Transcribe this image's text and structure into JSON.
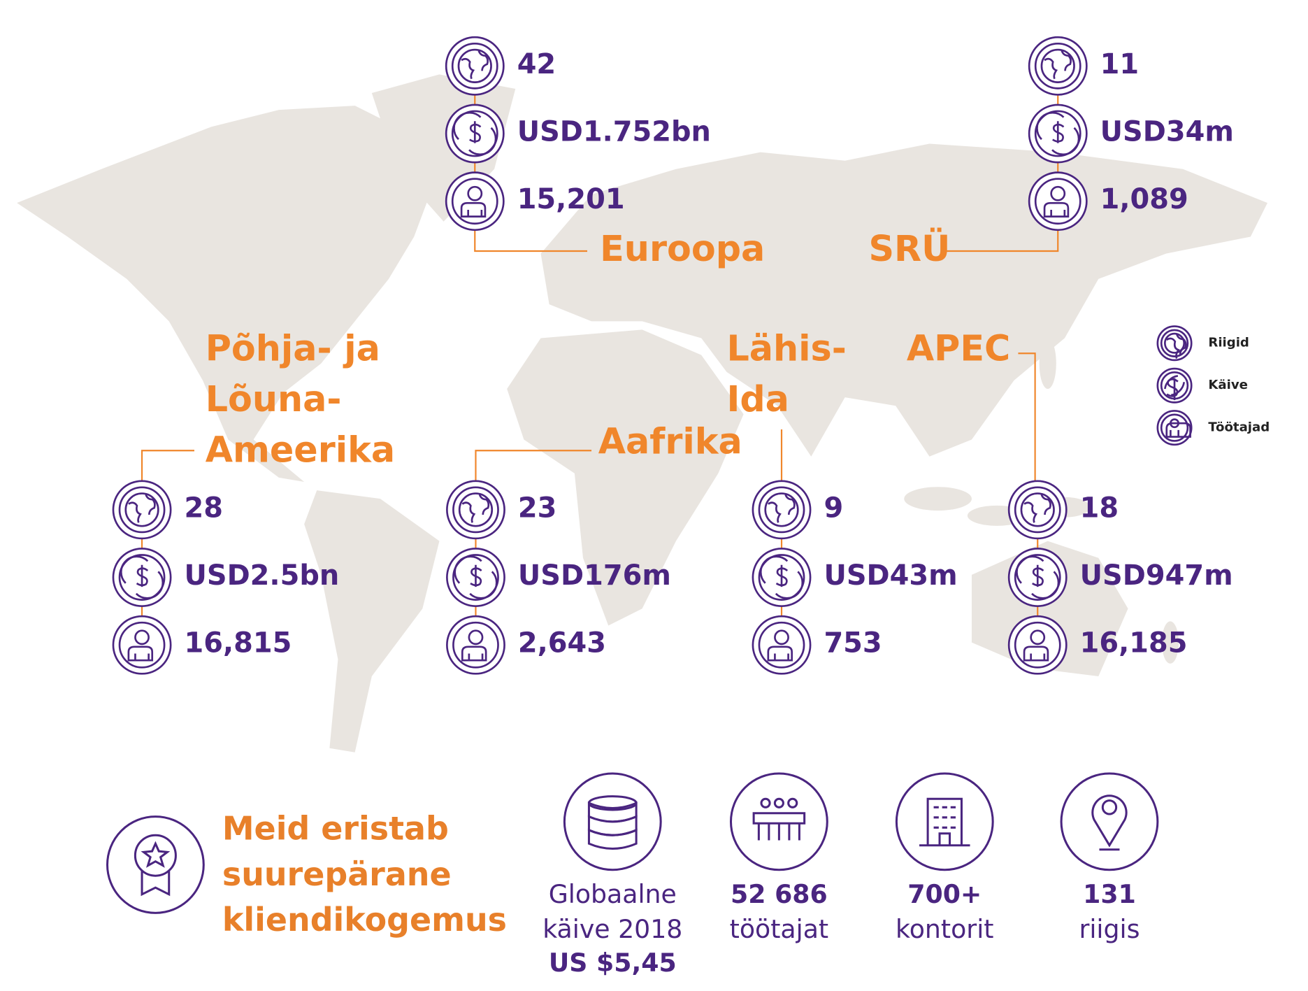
{
  "regions": [
    {
      "name": [
        "Euroopa"
      ],
      "countries": "42",
      "turnover": "USD1.752bn",
      "employees": "15,201"
    },
    {
      "name": [
        "SRÜ"
      ],
      "countries": "11",
      "turnover": "USD34m",
      "employees": "1,089"
    },
    {
      "name": [
        "Põhja- ja",
        "Lõuna-",
        "Ameerika"
      ],
      "countries": "28",
      "turnover": "USD2.5bn",
      "employees": "16,815"
    },
    {
      "name": [
        "Aafrika"
      ],
      "countries": "23",
      "turnover": "USD176m",
      "employees": "2,643"
    },
    {
      "name": [
        "Lähis-",
        "Ida"
      ],
      "countries": "9",
      "turnover": "USD43m",
      "employees": "753"
    },
    {
      "name": [
        "APEC"
      ],
      "countries": "18",
      "turnover": "USD947m",
      "employees": "16,185"
    }
  ],
  "legend": [
    "Riigid",
    "Käive",
    "Töötajad"
  ],
  "highlight": [
    "Meid eristab",
    "suurepärane",
    "kliendikogemus"
  ],
  "stats": [
    {
      "lines": [
        "Globaalne",
        "käive 2018"
      ],
      "bold": "US $5,45"
    },
    {
      "bold": "52 686",
      "lines": [
        "töötajat"
      ]
    },
    {
      "bold": "700+",
      "lines": [
        "kontorit"
      ]
    },
    {
      "bold": "131",
      "lines": [
        "riigis"
      ]
    }
  ]
}
